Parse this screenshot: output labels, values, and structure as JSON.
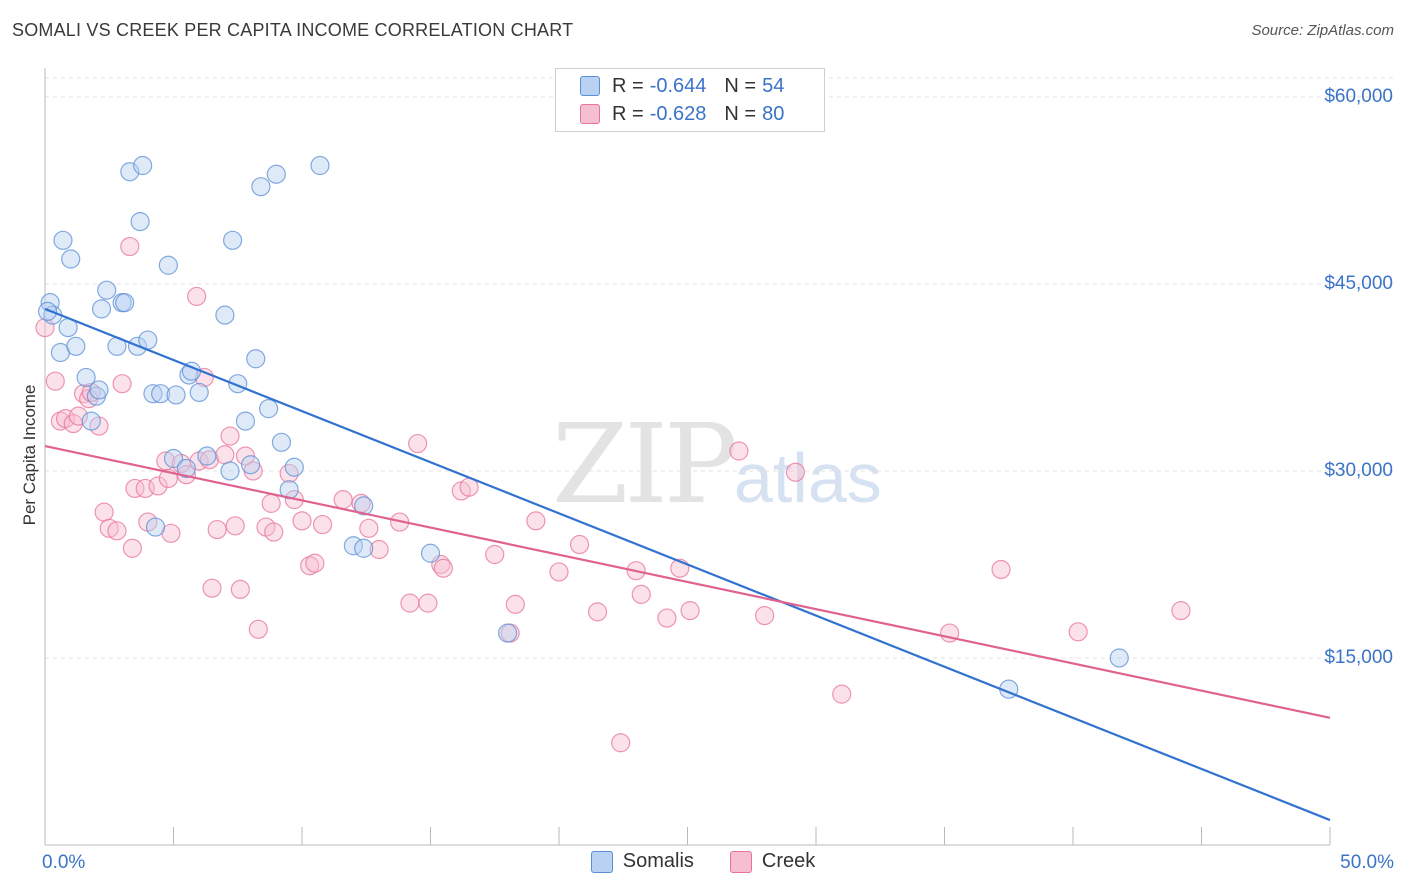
{
  "title": "SOMALI VS CREEK PER CAPITA INCOME CORRELATION CHART",
  "source": "Source: ZipAtlas.com",
  "watermark": {
    "zip": "ZIP",
    "atlas": "atlas"
  },
  "colors": {
    "somalis": "#5b8fd6",
    "somalis_fill": "#b9d1f2",
    "creek": "#e8739b",
    "creek_fill": "#f6bfd1",
    "axis_text": "#3b73c8"
  },
  "legend": {
    "rows": [
      {
        "r_label": "R =",
        "r_value": "-0.644",
        "n_label": "N =",
        "n_value": "54"
      },
      {
        "r_label": "R =",
        "r_value": "-0.628",
        "n_label": "N =",
        "n_value": "80"
      }
    ]
  },
  "chart_data": {
    "type": "scatter",
    "xlabel": "",
    "ylabel": "Per Capita Income",
    "xlim": [
      0,
      50
    ],
    "ylim": [
      0,
      62000
    ],
    "x_tick_labels": [
      "0.0%",
      "50.0%"
    ],
    "y_ticks": [
      15000,
      30000,
      45000,
      60000
    ],
    "y_tick_labels": [
      "$15,000",
      "$30,000",
      "$45,000",
      "$60,000"
    ],
    "grid": true,
    "legend_position": "top-center",
    "series": [
      {
        "name": "Somalis",
        "trend": {
          "x": [
            0,
            50
          ],
          "y": [
            43000,
            2000
          ]
        },
        "points": [
          [
            0.2,
            43500
          ],
          [
            0.3,
            42500
          ],
          [
            0.6,
            39500
          ],
          [
            0.7,
            48500
          ],
          [
            0.9,
            41500
          ],
          [
            1.0,
            47000
          ],
          [
            1.2,
            40000
          ],
          [
            1.6,
            37500
          ],
          [
            1.8,
            34000
          ],
          [
            2.0,
            36000
          ],
          [
            2.1,
            36500
          ],
          [
            2.2,
            43000
          ],
          [
            2.4,
            44500
          ],
          [
            2.8,
            40000
          ],
          [
            3.0,
            43500
          ],
          [
            3.1,
            43500
          ],
          [
            3.3,
            54000
          ],
          [
            3.6,
            40000
          ],
          [
            3.7,
            50000
          ],
          [
            3.8,
            54500
          ],
          [
            4.0,
            40500
          ],
          [
            4.2,
            36200
          ],
          [
            4.3,
            25500
          ],
          [
            4.5,
            36200
          ],
          [
            4.8,
            46500
          ],
          [
            5.0,
            31000
          ],
          [
            5.1,
            36100
          ],
          [
            5.5,
            30200
          ],
          [
            5.6,
            37700
          ],
          [
            5.7,
            38000
          ],
          [
            6.0,
            36300
          ],
          [
            6.3,
            31200
          ],
          [
            7.0,
            42500
          ],
          [
            7.2,
            30000
          ],
          [
            7.3,
            48500
          ],
          [
            7.5,
            37000
          ],
          [
            7.8,
            34000
          ],
          [
            8.0,
            30500
          ],
          [
            8.2,
            39000
          ],
          [
            8.4,
            52800
          ],
          [
            8.7,
            35000
          ],
          [
            9.0,
            53800
          ],
          [
            9.2,
            32300
          ],
          [
            9.5,
            28500
          ],
          [
            9.7,
            30300
          ],
          [
            10.7,
            54500
          ],
          [
            12.0,
            24000
          ],
          [
            12.4,
            27200
          ],
          [
            12.4,
            23800
          ],
          [
            15.0,
            23400
          ],
          [
            18.0,
            17000
          ],
          [
            37.5,
            12500
          ],
          [
            41.8,
            15000
          ],
          [
            0.1,
            42800
          ]
        ]
      },
      {
        "name": "Creek",
        "trend": {
          "x": [
            0,
            50
          ],
          "y": [
            32000,
            10200
          ]
        },
        "points": [
          [
            0.0,
            41500
          ],
          [
            0.4,
            37200
          ],
          [
            0.6,
            34000
          ],
          [
            0.8,
            34200
          ],
          [
            1.1,
            33800
          ],
          [
            1.3,
            34400
          ],
          [
            1.5,
            36200
          ],
          [
            1.7,
            35800
          ],
          [
            1.8,
            36300
          ],
          [
            2.1,
            33600
          ],
          [
            2.3,
            26700
          ],
          [
            2.5,
            25400
          ],
          [
            2.8,
            25200
          ],
          [
            3.0,
            37000
          ],
          [
            3.3,
            48000
          ],
          [
            3.4,
            23800
          ],
          [
            3.5,
            28600
          ],
          [
            3.9,
            28600
          ],
          [
            4.0,
            25900
          ],
          [
            4.4,
            28800
          ],
          [
            4.7,
            30800
          ],
          [
            4.8,
            29400
          ],
          [
            4.9,
            25000
          ],
          [
            5.3,
            30600
          ],
          [
            5.5,
            29700
          ],
          [
            5.9,
            44000
          ],
          [
            6.0,
            30800
          ],
          [
            6.2,
            37500
          ],
          [
            6.4,
            30900
          ],
          [
            6.5,
            20600
          ],
          [
            6.7,
            25300
          ],
          [
            7.0,
            31300
          ],
          [
            7.2,
            32800
          ],
          [
            7.4,
            25600
          ],
          [
            7.6,
            20500
          ],
          [
            7.8,
            31200
          ],
          [
            8.1,
            30000
          ],
          [
            8.3,
            17300
          ],
          [
            8.6,
            25500
          ],
          [
            8.8,
            27400
          ],
          [
            8.9,
            25100
          ],
          [
            9.5,
            29800
          ],
          [
            9.7,
            27700
          ],
          [
            10.0,
            26000
          ],
          [
            10.3,
            22400
          ],
          [
            10.5,
            22600
          ],
          [
            10.8,
            25700
          ],
          [
            11.6,
            27700
          ],
          [
            12.3,
            27400
          ],
          [
            12.6,
            25400
          ],
          [
            13.0,
            23700
          ],
          [
            13.8,
            25900
          ],
          [
            14.2,
            19400
          ],
          [
            14.5,
            32200
          ],
          [
            14.9,
            19400
          ],
          [
            15.4,
            22500
          ],
          [
            15.5,
            22200
          ],
          [
            16.2,
            28400
          ],
          [
            16.5,
            28700
          ],
          [
            17.5,
            23300
          ],
          [
            18.1,
            17000
          ],
          [
            18.3,
            19300
          ],
          [
            19.1,
            26000
          ],
          [
            20.0,
            21900
          ],
          [
            20.8,
            24100
          ],
          [
            21.5,
            18700
          ],
          [
            22.4,
            8200
          ],
          [
            23.0,
            22000
          ],
          [
            23.2,
            20100
          ],
          [
            24.2,
            18200
          ],
          [
            24.7,
            22200
          ],
          [
            25.1,
            18800
          ],
          [
            27.0,
            31600
          ],
          [
            28.0,
            18400
          ],
          [
            29.2,
            29900
          ],
          [
            31.0,
            12100
          ],
          [
            35.2,
            17000
          ],
          [
            37.2,
            22100
          ],
          [
            40.2,
            17100
          ],
          [
            44.2,
            18800
          ]
        ]
      }
    ]
  },
  "bottom_legend": [
    "Somalis",
    "Creek"
  ]
}
